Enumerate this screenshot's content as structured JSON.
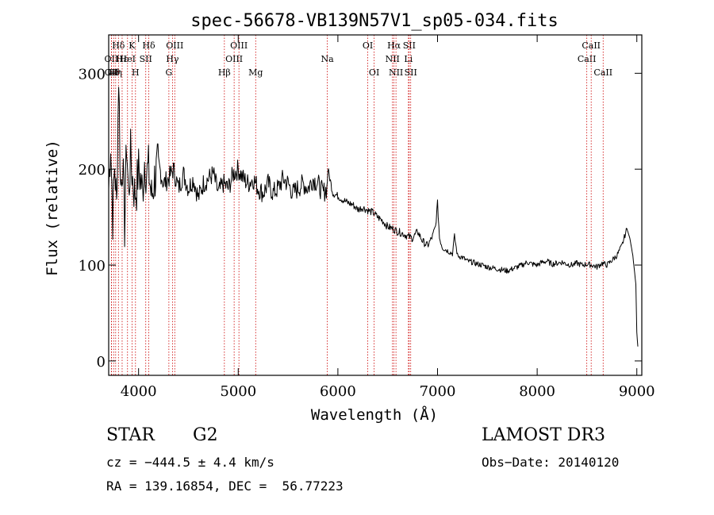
{
  "chart_data": {
    "type": "line",
    "title": "spec-56678-VB139N57V1_sp05-034.fits",
    "xlabel": "Wavelength (Å)",
    "ylabel": "Flux (relative)",
    "xlim": [
      3700,
      9050
    ],
    "ylim": [
      -15,
      340
    ],
    "xticks": [
      4000,
      5000,
      6000,
      7000,
      8000,
      9000
    ],
    "yticks": [
      0,
      100,
      200,
      300
    ],
    "grid": false,
    "line_color": "#000000",
    "marker_color": "#cc0000",
    "series": [
      {
        "name": "spectrum",
        "x": [
          3700,
          3720,
          3740,
          3760,
          3780,
          3800,
          3820,
          3840,
          3860,
          3880,
          3900,
          3920,
          3940,
          3960,
          3980,
          4000,
          4020,
          4040,
          4060,
          4080,
          4100,
          4130,
          4160,
          4200,
          4250,
          4300,
          4350,
          4400,
          4450,
          4500,
          4550,
          4600,
          4650,
          4700,
          4750,
          4800,
          4850,
          4900,
          4950,
          5000,
          5050,
          5100,
          5150,
          5200,
          5250,
          5300,
          5350,
          5400,
          5450,
          5500,
          5550,
          5600,
          5650,
          5700,
          5750,
          5800,
          5850,
          5890,
          5900,
          5950,
          6000,
          6050,
          6100,
          6150,
          6200,
          6250,
          6300,
          6350,
          6400,
          6450,
          6500,
          6550,
          6600,
          6650,
          6700,
          6750,
          6800,
          6850,
          6900,
          6950,
          6980,
          7000,
          7020,
          7050,
          7100,
          7150,
          7170,
          7200,
          7250,
          7300,
          7350,
          7400,
          7450,
          7500,
          7550,
          7600,
          7650,
          7700,
          7750,
          7800,
          7850,
          7900,
          7950,
          8000,
          8050,
          8100,
          8150,
          8200,
          8250,
          8300,
          8350,
          8400,
          8450,
          8500,
          8550,
          8600,
          8650,
          8700,
          8750,
          8800,
          8850,
          8900,
          8930,
          8960,
          8990,
          9000,
          9010
        ],
        "values": [
          180,
          230,
          150,
          205,
          160,
          300,
          180,
          210,
          140,
          230,
          170,
          215,
          190,
          175,
          180,
          200,
          190,
          175,
          210,
          195,
          200,
          170,
          190,
          205,
          185,
          190,
          200,
          180,
          195,
          180,
          190,
          170,
          185,
          190,
          195,
          175,
          185,
          180,
          195,
          200,
          190,
          185,
          190,
          180,
          175,
          185,
          175,
          180,
          190,
          185,
          175,
          180,
          185,
          180,
          190,
          185,
          175,
          180,
          200,
          175,
          172,
          168,
          165,
          163,
          158,
          160,
          157,
          155,
          150,
          146,
          140,
          138,
          135,
          133,
          130,
          128,
          135,
          125,
          120,
          130,
          140,
          165,
          128,
          118,
          115,
          112,
          130,
          110,
          108,
          104,
          103,
          101,
          100,
          98,
          97,
          96,
          95,
          94,
          96,
          98,
          100,
          103,
          101,
          100,
          103,
          104,
          101,
          102,
          103,
          101,
          100,
          102,
          100,
          101,
          100,
          98,
          102,
          100,
          105,
          110,
          120,
          138,
          128,
          110,
          80,
          30,
          15
        ]
      }
    ],
    "line_markers": [
      {
        "x": 3727,
        "label": "OII",
        "row": 1
      },
      {
        "x": 3729,
        "label": "OII",
        "row": 2
      },
      {
        "x": 3750,
        "label": "Hθ",
        "row": 2
      },
      {
        "x": 3770,
        "label": "Hη",
        "row": 2
      },
      {
        "x": 3798,
        "label": "Hδ",
        "row": 0
      },
      {
        "x": 3835,
        "label": "Hε",
        "row": 1
      },
      {
        "x": 3889,
        "label": "HeI",
        "row": 1
      },
      {
        "x": 3934,
        "label": "K",
        "row": 0
      },
      {
        "x": 3969,
        "label": "H",
        "row": 2
      },
      {
        "x": 4072,
        "label": "SII",
        "row": 1
      },
      {
        "x": 4102,
        "label": "Hδ",
        "row": 0
      },
      {
        "x": 4304,
        "label": "G",
        "row": 2
      },
      {
        "x": 4340,
        "label": "Hγ",
        "row": 1
      },
      {
        "x": 4363,
        "label": "OIII",
        "row": 0
      },
      {
        "x": 4861,
        "label": "Hβ",
        "row": 2
      },
      {
        "x": 4959,
        "label": "OIII",
        "row": 1
      },
      {
        "x": 5007,
        "label": "OIII",
        "row": 0
      },
      {
        "x": 5175,
        "label": "Mg",
        "row": 2
      },
      {
        "x": 5894,
        "label": "Na",
        "row": 1
      },
      {
        "x": 6300,
        "label": "OI",
        "row": 0
      },
      {
        "x": 6364,
        "label": "OI",
        "row": 2
      },
      {
        "x": 6548,
        "label": "NII",
        "row": 1
      },
      {
        "x": 6563,
        "label": "Hα",
        "row": 0
      },
      {
        "x": 6583,
        "label": "NII",
        "row": 2
      },
      {
        "x": 6708,
        "label": "Li",
        "row": 1
      },
      {
        "x": 6716,
        "label": "SII",
        "row": 0
      },
      {
        "x": 6731,
        "label": "SII",
        "row": 2
      },
      {
        "x": 8498,
        "label": "CaII",
        "row": 1
      },
      {
        "x": 8542,
        "label": "CaII",
        "row": 0
      },
      {
        "x": 8662,
        "label": "CaII",
        "row": 2
      }
    ]
  },
  "info": {
    "object_class": "STAR",
    "subclass": "G2",
    "survey": "LAMOST DR3",
    "cz": "cz = −444.5 ± 4.4 km/s",
    "obs_date": "Obs−Date: 20140120",
    "coords": "RA = 139.16854, DEC =  56.77223"
  }
}
